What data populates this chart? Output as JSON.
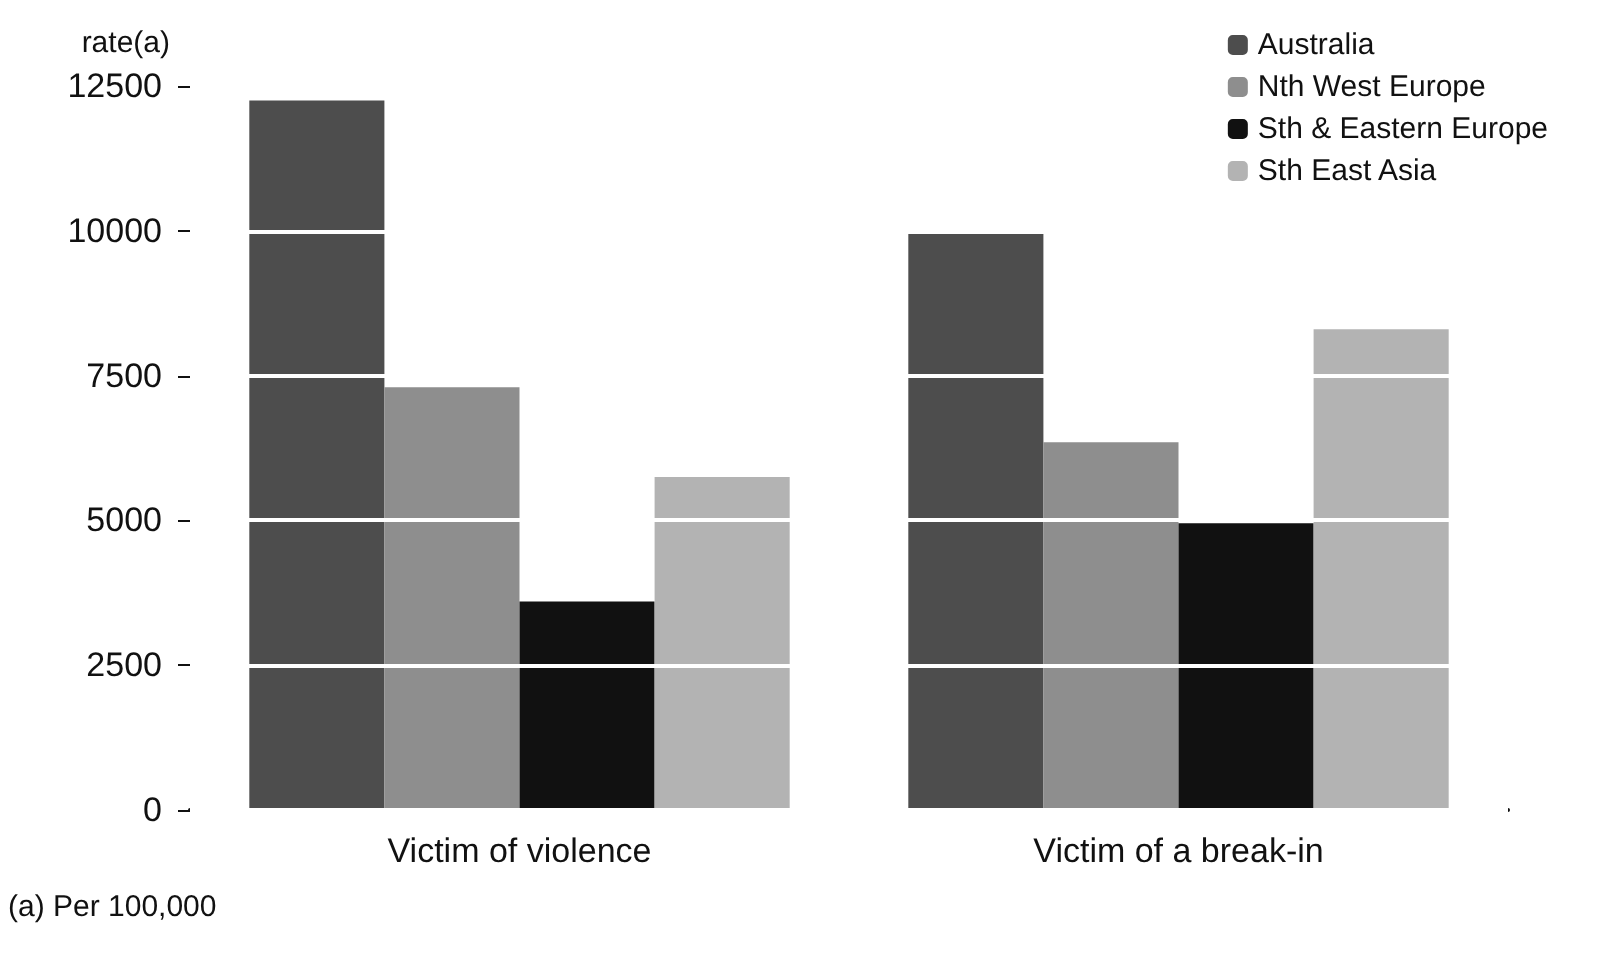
{
  "chart_data": {
    "type": "bar",
    "ylabel": "rate(a)",
    "categories": [
      "Victim of violence",
      "Victim of a break-in"
    ],
    "series": [
      {
        "name": "Australia",
        "color": "#4d4d4d",
        "values": [
          12250,
          9950
        ]
      },
      {
        "name": "Nth West Europe",
        "color": "#8e8e8e",
        "values": [
          7300,
          6350
        ]
      },
      {
        "name": "Sth & Eastern Europe",
        "color": "#111111",
        "values": [
          3600,
          4950
        ]
      },
      {
        "name": "Sth East Asia",
        "color": "#b3b3b3",
        "values": [
          5750,
          8300
        ]
      }
    ],
    "ylim": [
      0,
      12500
    ],
    "yticks": [
      0,
      2500,
      5000,
      7500,
      10000,
      12500
    ],
    "grid": "y",
    "legend": "top right",
    "annotations": [
      "(a) Per 100,000"
    ]
  }
}
